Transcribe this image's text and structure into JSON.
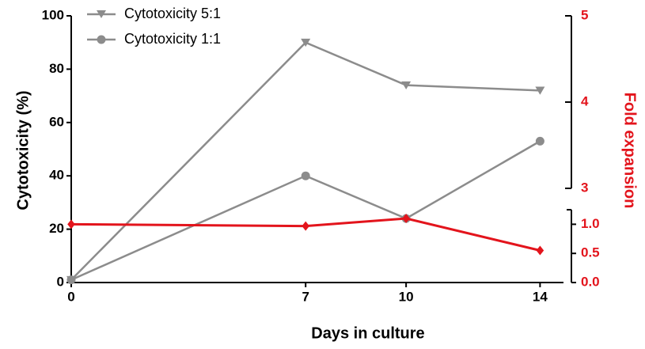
{
  "chart_data": {
    "type": "line",
    "x": [
      0,
      7,
      10,
      14
    ],
    "xlabel": "Days in culture",
    "ylabel": "Cytotoxicity (%)",
    "y2label": "Fold expansion",
    "xlim": [
      0,
      14.7
    ],
    "xticks": [
      0,
      7,
      10,
      14
    ],
    "ylim": [
      0,
      100
    ],
    "yticks": [
      0,
      20,
      40,
      60,
      80,
      100
    ],
    "y2lim": [
      0,
      5
    ],
    "y2break": [
      1.25,
      3
    ],
    "y2ticks": [
      {
        "value": 0,
        "label": "0.0"
      },
      {
        "value": 0.5,
        "label": "0.5"
      },
      {
        "value": 1,
        "label": "1.0"
      },
      3,
      4,
      5
    ],
    "y2color": "#e3141c",
    "legend": "upper left",
    "series": [
      {
        "name": "Cytotoxicity 5:1",
        "color": "#8c8c8c",
        "marker": "triangle-down",
        "values": [
          1,
          90,
          74,
          72
        ]
      },
      {
        "name": "Cytotoxicity 1:1",
        "color": "#8c8c8c",
        "marker": "circle",
        "values": [
          1,
          40,
          24,
          53
        ]
      },
      {
        "color": "#e3141c",
        "marker": "diamond",
        "axis": "y2",
        "values": [
          1.0,
          0.97,
          1.1,
          0.55
        ]
      }
    ]
  }
}
